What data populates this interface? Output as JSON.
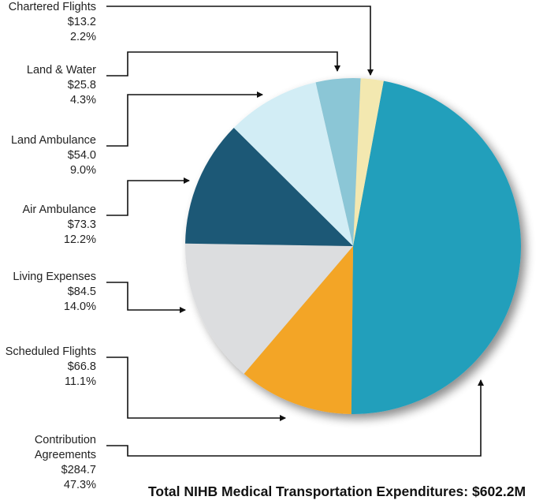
{
  "chart_data": {
    "type": "pie",
    "title": "Total NIHB Medical Transportation Expenditures: $602.2M",
    "unit": "$M",
    "slices": [
      {
        "label": [
          "Contribution",
          "Agreements"
        ],
        "amount": "$284.7",
        "percent": "47.3%",
        "value": 47.3,
        "color": "#229fbb"
      },
      {
        "label": [
          "Scheduled Flights"
        ],
        "amount": "$66.8",
        "percent": "11.1%",
        "value": 11.1,
        "color": "#f3a525"
      },
      {
        "label": [
          "Living Expenses"
        ],
        "amount": "$84.5",
        "percent": "14.0%",
        "value": 14.0,
        "color": "#dcdddf"
      },
      {
        "label": [
          "Air Ambulance"
        ],
        "amount": "$73.3",
        "percent": "12.2%",
        "value": 12.2,
        "color": "#1f5876"
      },
      {
        "label": [
          "Land Ambulance"
        ],
        "amount": "$54.0",
        "percent": "9.0%",
        "value": 9.0,
        "color": "#d2edf5"
      },
      {
        "label": [
          "Land & Water"
        ],
        "amount": "$25.8",
        "percent": "4.3%",
        "value": 4.3,
        "color": "#8bc6d6"
      },
      {
        "label": [
          "Chartered Flights"
        ],
        "amount": "$13.2",
        "percent": "2.2%",
        "value": 2.2,
        "color": "#f3e8b0"
      }
    ]
  }
}
